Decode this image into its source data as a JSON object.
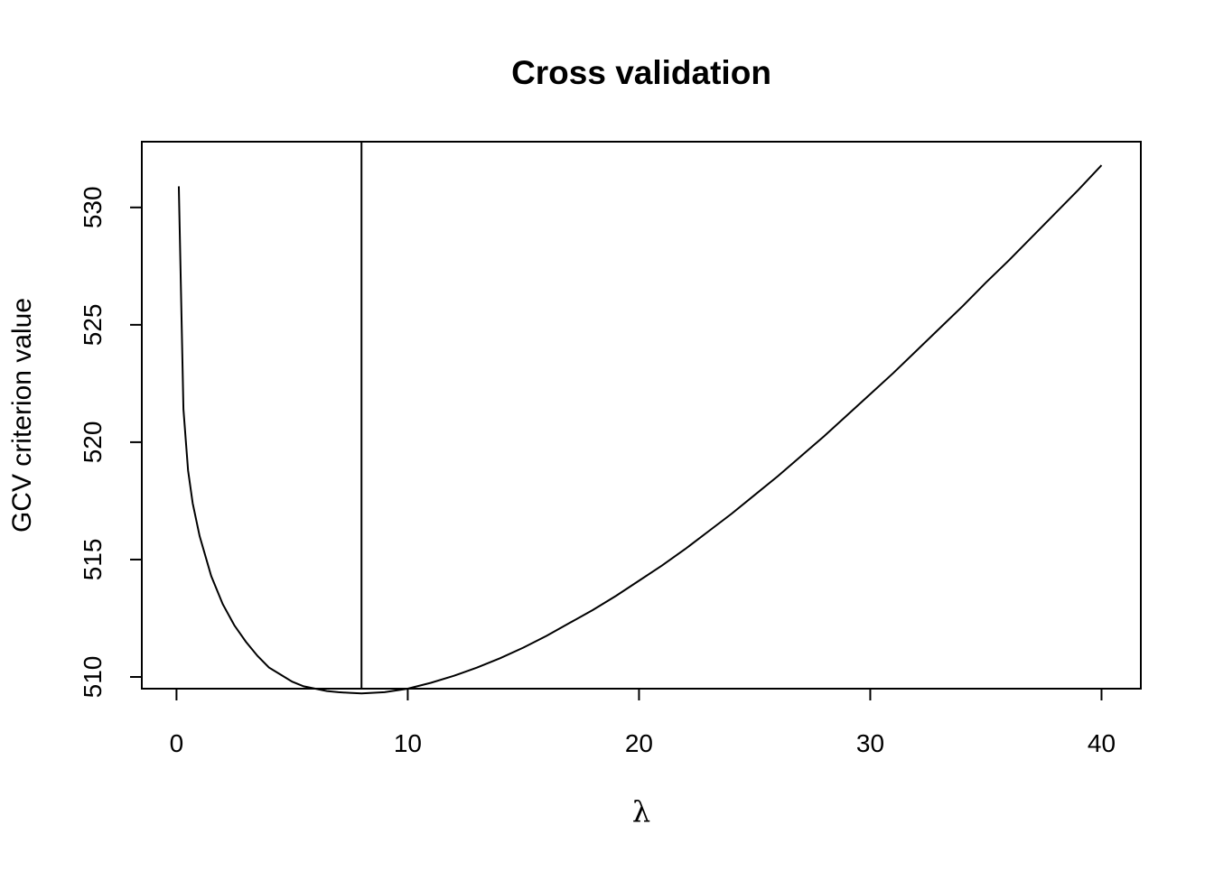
{
  "chart_data": {
    "type": "line",
    "title": "Cross validation",
    "xlabel": "λ",
    "ylabel": "GCV criterion value",
    "xlim": [
      -1.5,
      41.7
    ],
    "ylim": [
      509.5,
      532.8
    ],
    "xticks": [
      0,
      10,
      20,
      30,
      40
    ],
    "yticks": [
      510,
      515,
      520,
      525,
      530
    ],
    "grid": false,
    "legend": "none",
    "vline_x": 8,
    "series": [
      {
        "color": "#000000",
        "x": [
          0.1,
          0.3,
          0.5,
          0.7,
          1,
          1.5,
          2,
          2.5,
          3,
          3.5,
          4,
          4.5,
          5,
          5.5,
          6,
          6.5,
          7,
          7.5,
          8,
          9,
          10,
          11,
          12,
          13,
          14,
          15,
          16,
          17,
          18,
          19,
          20,
          21,
          22,
          23,
          24,
          25,
          26,
          27,
          28,
          29,
          30,
          31,
          32,
          33,
          34,
          35,
          36,
          37,
          38,
          39,
          40
        ],
        "y": [
          530.9,
          521.4,
          518.8,
          517.4,
          516.0,
          514.3,
          513.1,
          512.2,
          511.5,
          510.9,
          510.4,
          510.1,
          509.8,
          509.6,
          509.5,
          509.4,
          509.35,
          509.32,
          509.3,
          509.35,
          509.5,
          509.75,
          510.05,
          510.4,
          510.8,
          511.25,
          511.75,
          512.3,
          512.85,
          513.45,
          514.1,
          514.75,
          515.45,
          516.2,
          516.95,
          517.75,
          518.55,
          519.4,
          520.25,
          521.15,
          522.05,
          522.95,
          523.9,
          524.85,
          525.8,
          526.8,
          527.75,
          528.75,
          529.75,
          530.75,
          531.8
        ]
      }
    ]
  }
}
